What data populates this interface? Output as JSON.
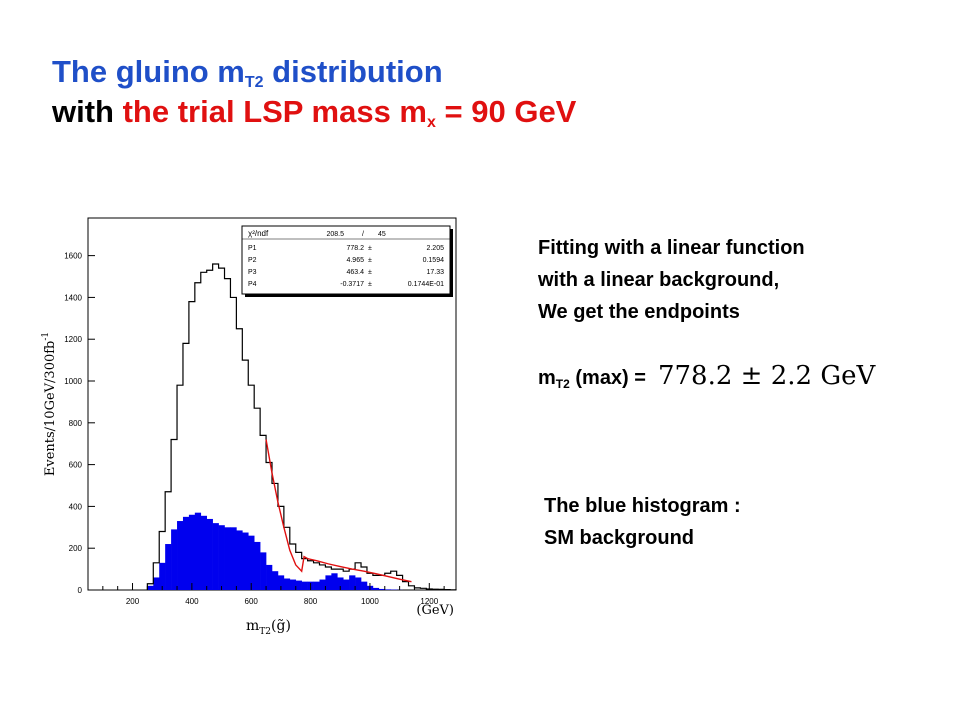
{
  "slide": {
    "title_line1_prefix": "The gluino m",
    "title_line1_sub": "T2",
    "title_line1_suffix": " distribution",
    "title_line2_prefix": "with ",
    "title_line2_red": "the trial LSP mass m",
    "title_line2_sub": "x",
    "title_line2_suffix": " = 90 GeV"
  },
  "side_text": {
    "line1": "Fitting with a linear function",
    "line2": "with a linear background,",
    "line3": "We get the endpoints",
    "mt2_label_prefix": "m",
    "mt2_label_sub": "T2",
    "mt2_label_suffix": " (max) =",
    "mt2_value": "778.2 ± 2.2 GeV"
  },
  "bg_note": {
    "line1": "The blue histogram :",
    "line2": "SM background"
  },
  "colors": {
    "title_blue": "#1f4fc8",
    "title_red": "#e01010",
    "signal": "#000000",
    "background": "#0000ee",
    "fit": "#e01010"
  },
  "chart_data": {
    "type": "bar",
    "xlabel": "m",
    "xlabel_sub": "T2",
    "xlabel_arg": "(g̃)",
    "x_unit": "(GeV)",
    "ylabel": "Events/10GeV/300fb",
    "ylabel_sup": "-1",
    "xlim": [
      50,
      1290
    ],
    "ylim": [
      0,
      1780
    ],
    "x_ticks": [
      200,
      400,
      600,
      800,
      1000,
      1200
    ],
    "y_ticks": [
      0,
      200,
      400,
      600,
      800,
      1000,
      1200,
      1400,
      1600
    ],
    "x_tick_labels": [
      "200",
      "400",
      "600",
      "800",
      "1000",
      "1200"
    ],
    "y_tick_labels": [
      "0",
      "200",
      "400",
      "600",
      "800",
      "1000",
      "1200",
      "1400",
      "1600"
    ],
    "stats_box": {
      "header_label": "χ²/ndf",
      "header_value": "208.5",
      "header_sep": "/",
      "header_ndf": "45",
      "rows": [
        {
          "name": "P1",
          "value": "778.2",
          "pm": "±",
          "error": "2.205"
        },
        {
          "name": "P2",
          "value": "4.965",
          "pm": "±",
          "error": "0.1594"
        },
        {
          "name": "P3",
          "value": "463.4",
          "pm": "±",
          "error": "17.33"
        },
        {
          "name": "P4",
          "value": "-0.3717",
          "pm": "±",
          "error": "0.1744E-01"
        }
      ]
    },
    "series": [
      {
        "kind": "signal_total",
        "x": [
          260,
          280,
          300,
          320,
          340,
          360,
          380,
          400,
          420,
          440,
          460,
          480,
          500,
          520,
          540,
          560,
          580,
          600,
          620,
          640,
          660,
          680,
          700,
          720,
          740,
          760,
          780,
          800,
          820,
          840,
          860,
          880,
          900,
          920,
          940,
          960,
          980,
          1000,
          1020,
          1040,
          1060,
          1080,
          1100,
          1120,
          1140,
          1160,
          1180,
          1200,
          1220,
          1240,
          1260,
          1280
        ],
        "y": [
          30,
          130,
          280,
          470,
          720,
          980,
          1180,
          1380,
          1470,
          1520,
          1530,
          1560,
          1540,
          1490,
          1400,
          1250,
          1100,
          980,
          870,
          740,
          610,
          510,
          400,
          300,
          220,
          180,
          150,
          140,
          130,
          120,
          110,
          100,
          100,
          90,
          100,
          130,
          110,
          80,
          70,
          70,
          80,
          90,
          70,
          40,
          20,
          10,
          8,
          5,
          4,
          3,
          2,
          1
        ]
      },
      {
        "kind": "sm_background",
        "x": [
          260,
          280,
          300,
          320,
          340,
          360,
          380,
          400,
          420,
          440,
          460,
          480,
          500,
          520,
          540,
          560,
          580,
          600,
          620,
          640,
          660,
          680,
          700,
          720,
          740,
          760,
          780,
          800,
          820,
          840,
          860,
          880,
          900,
          920,
          940,
          960,
          980,
          1000,
          1020,
          1040,
          1060,
          1080,
          1100,
          1120,
          1140,
          1160,
          1180,
          1200
        ],
        "y": [
          20,
          60,
          130,
          220,
          290,
          330,
          350,
          360,
          370,
          355,
          340,
          320,
          310,
          300,
          300,
          285,
          275,
          260,
          230,
          180,
          120,
          90,
          70,
          55,
          50,
          45,
          40,
          40,
          40,
          50,
          70,
          80,
          60,
          50,
          70,
          60,
          40,
          20,
          10,
          5,
          3,
          2,
          1,
          0,
          0,
          0,
          0,
          0
        ]
      },
      {
        "kind": "fit",
        "x": [
          650,
          670,
          690,
          710,
          730,
          750,
          770,
          778,
          790,
          820,
          860,
          900,
          940,
          980,
          1020,
          1060,
          1100,
          1140
        ],
        "y": [
          720,
          560,
          420,
          300,
          190,
          120,
          90,
          160,
          150,
          140,
          125,
          112,
          100,
          90,
          78,
          65,
          52,
          40
        ]
      }
    ]
  }
}
